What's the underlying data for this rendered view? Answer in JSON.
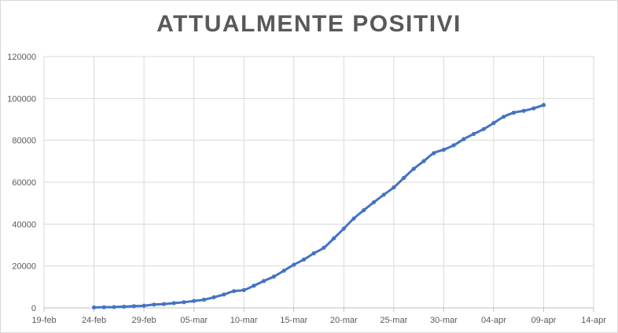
{
  "chart_data": {
    "type": "line",
    "title": "ATTUALMENTE  POSITIVI",
    "xlabel": "",
    "ylabel": "",
    "x_start": "2020-02-19",
    "x_tick_labels": [
      "19-feb",
      "24-feb",
      "29-feb",
      "05-mar",
      "10-mar",
      "15-mar",
      "20-mar",
      "25-mar",
      "30-mar",
      "04-apr",
      "09-apr",
      "14-apr"
    ],
    "y_tick_labels": [
      "0",
      "20000",
      "40000",
      "60000",
      "80000",
      "100000",
      "120000"
    ],
    "ylim": [
      0,
      120000
    ],
    "grid": "vertical-and-horizontal",
    "line_color": "#4472c4",
    "grid_color": "#d9d9d9",
    "series": [
      {
        "dates": [
          "24-feb",
          "25-feb",
          "26-feb",
          "27-feb",
          "28-feb",
          "29-feb",
          "01-mar",
          "02-mar",
          "03-mar",
          "04-mar",
          "05-mar",
          "06-mar",
          "07-mar",
          "08-mar",
          "09-mar",
          "10-mar",
          "11-mar",
          "12-mar",
          "13-mar",
          "14-mar",
          "15-mar",
          "16-mar",
          "17-mar",
          "18-mar",
          "19-mar",
          "20-mar",
          "21-mar",
          "22-mar",
          "23-mar",
          "24-mar",
          "25-mar",
          "26-mar",
          "27-mar",
          "28-mar",
          "29-mar",
          "30-mar",
          "31-mar",
          "01-apr",
          "02-apr",
          "03-apr",
          "04-apr",
          "05-apr",
          "06-apr",
          "07-apr",
          "08-apr",
          "09-apr"
        ],
        "values": [
          221,
          311,
          385,
          588,
          821,
          1049,
          1577,
          1835,
          2263,
          2706,
          3296,
          3916,
          5061,
          6387,
          7985,
          8514,
          10590,
          12839,
          14955,
          17750,
          20603,
          23073,
          26062,
          28710,
          33190,
          37860,
          42681,
          46638,
          50418,
          54030,
          57521,
          62013,
          66414,
          70065,
          73880,
          75528,
          77635,
          80572,
          83049,
          85388,
          88274,
          91246,
          93187,
          94067,
          95262,
          96877
        ]
      }
    ]
  }
}
